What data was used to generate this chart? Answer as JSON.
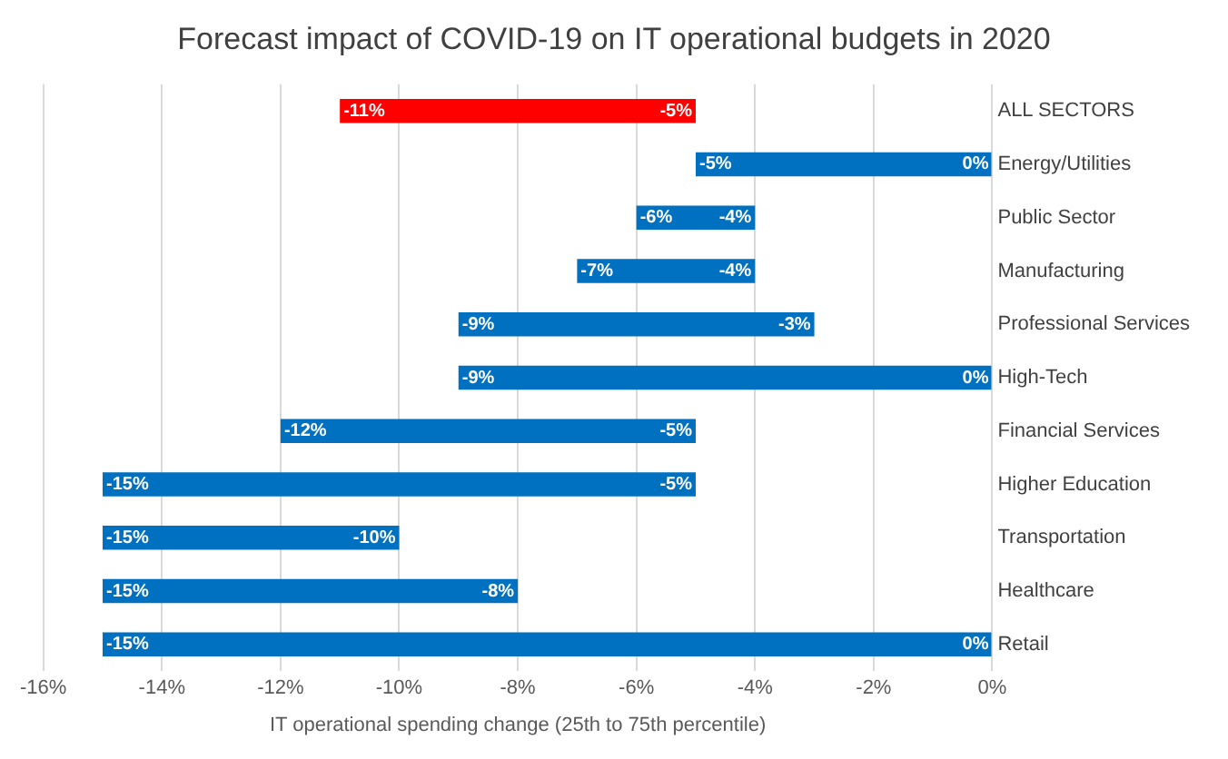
{
  "chart_data": {
    "type": "bar",
    "orientation": "horizontal",
    "title": "Forecast impact of COVID-19 on IT operational budgets in 2020",
    "xlabel": "IT operational spending change (25th to 75th percentile)",
    "categories": [
      "ALL SECTORS",
      "Energy/Utilities",
      "Public Sector",
      "Manufacturing",
      "Professional Services",
      "High-Tech",
      "Financial Services",
      "Higher Education",
      "Transportation",
      "Healthcare",
      "Retail"
    ],
    "base": [
      -11,
      -5,
      -6,
      -7,
      -9,
      -9,
      -12,
      -15,
      -15,
      -15,
      -15
    ],
    "values": [
      6,
      5,
      2,
      3,
      6,
      9,
      7,
      10,
      5,
      7,
      15
    ],
    "colors": [
      "#ff0000",
      "#0070c0",
      "#0070c0",
      "#0070c0",
      "#0070c0",
      "#0070c0",
      "#0070c0",
      "#0070c0",
      "#0070c0",
      "#0070c0",
      "#0070c0"
    ],
    "xlim": [
      -16,
      0
    ],
    "xticks": [
      {
        "value": -16,
        "label": "-16%"
      },
      {
        "value": -14,
        "label": "-14%"
      },
      {
        "value": -12,
        "label": "-12%"
      },
      {
        "value": -10,
        "label": "-10%"
      },
      {
        "value": -8,
        "label": "-8%"
      },
      {
        "value": -6,
        "label": "-6%"
      },
      {
        "value": -4,
        "label": "-4%"
      },
      {
        "value": -2,
        "label": "-2%"
      },
      {
        "value": 0,
        "label": "0%"
      }
    ],
    "grid": "x",
    "legend": false,
    "annotations": [
      {
        "text": "-11%",
        "x": -11,
        "y": "ALL SECTORS"
      },
      {
        "text": "-5%",
        "x": -5,
        "y": "ALL SECTORS"
      },
      {
        "text": "-5%",
        "x": -5,
        "y": "Energy/Utilities"
      },
      {
        "text": "0%",
        "x": 0,
        "y": "Energy/Utilities"
      },
      {
        "text": "-6%",
        "x": -6,
        "y": "Public Sector"
      },
      {
        "text": "-4%",
        "x": -4,
        "y": "Public Sector"
      },
      {
        "text": "-7%",
        "x": -7,
        "y": "Manufacturing"
      },
      {
        "text": "-4%",
        "x": -4,
        "y": "Manufacturing"
      },
      {
        "text": "-9%",
        "x": -9,
        "y": "Professional Services"
      },
      {
        "text": "-3%",
        "x": -3,
        "y": "Professional Services"
      },
      {
        "text": "-9%",
        "x": -9,
        "y": "High-Tech"
      },
      {
        "text": "0%",
        "x": 0,
        "y": "High-Tech"
      },
      {
        "text": "-12%",
        "x": -12,
        "y": "Financial Services"
      },
      {
        "text": "-5%",
        "x": -5,
        "y": "Financial Services"
      },
      {
        "text": "-15%",
        "x": -15,
        "y": "Higher Education"
      },
      {
        "text": "-5%",
        "x": -5,
        "y": "Higher Education"
      },
      {
        "text": "-15%",
        "x": -15,
        "y": "Transportation"
      },
      {
        "text": "-10%",
        "x": -10,
        "y": "Transportation"
      },
      {
        "text": "-15%",
        "x": -15,
        "y": "Healthcare"
      },
      {
        "text": "-8%",
        "x": -8,
        "y": "Healthcare"
      },
      {
        "text": "-15%",
        "x": -15,
        "y": "Retail"
      },
      {
        "text": "0%",
        "x": 0,
        "y": "Retail"
      }
    ]
  }
}
